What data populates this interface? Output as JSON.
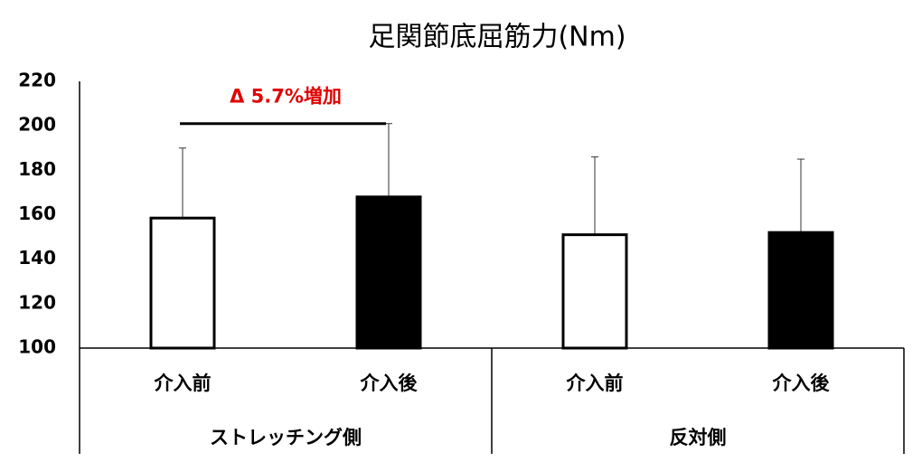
{
  "chart_data": {
    "type": "bar",
    "title": "足関節底屈筋力(Nm)",
    "categories": [
      "介入前",
      "介入後",
      "介入前",
      "介入後"
    ],
    "groups": [
      {
        "label": "ストレッチング側",
        "span": [
          0,
          1
        ]
      },
      {
        "label": "反対側",
        "span": [
          2,
          3
        ]
      }
    ],
    "values": [
      158.5,
      168,
      151,
      152
    ],
    "errors": [
      31.5,
      33,
      35,
      33
    ],
    "colors": [
      "#ffffff",
      "#000000",
      "#ffffff",
      "#000000"
    ],
    "ylim": [
      100,
      220
    ],
    "yticks": [
      100,
      120,
      140,
      160,
      180,
      200,
      220
    ],
    "grid": false,
    "annotation": {
      "text": "Δ 5.7%増加",
      "color": "#e00000",
      "between": [
        0,
        1
      ]
    }
  }
}
